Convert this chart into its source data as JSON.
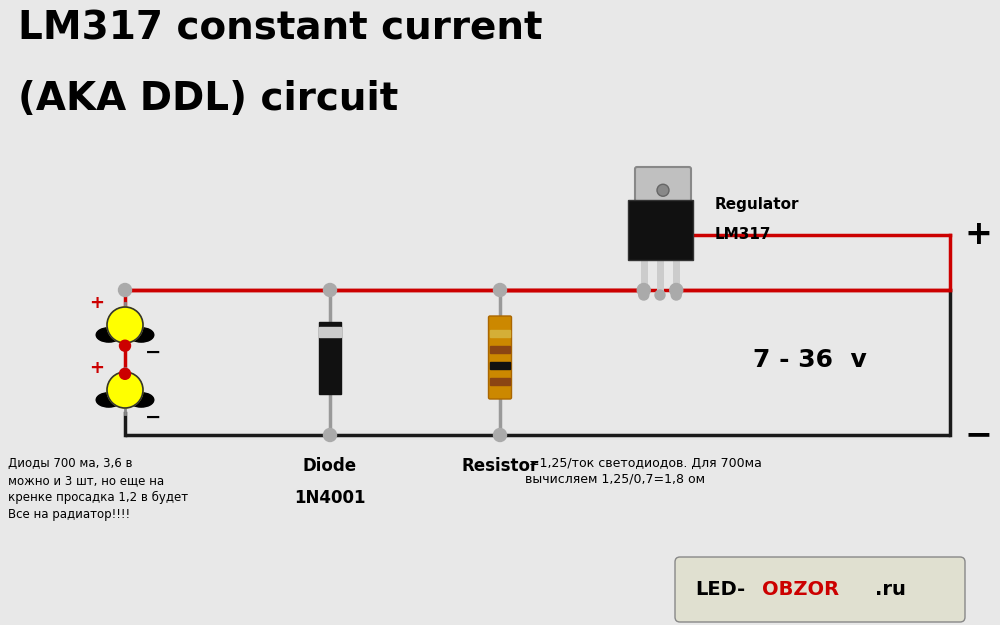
{
  "title_line1": "LM317 constant current",
  "title_line2": "(AKA DDL) circuit",
  "title_fontsize": 28,
  "title_fontweight": "bold",
  "bg_color": "#e8e8e8",
  "wire_red": "#cc0000",
  "wire_black": "#1a1a1a",
  "wire_gray": "#999999",
  "node_color": "#aaaaaa",
  "text_diode_label": "Diode\n1N4001",
  "text_resistor_label": "Resistor",
  "text_resistor_formula": " =1,25/ток светодиодов. Для 700ма\nвычисляем 1,25/0,7=1,8 ом",
  "text_regulator_line1": "Regulator",
  "text_regulator_line2": "LM317",
  "text_voltage": "7 - 36  v",
  "text_russian": "Диоды 700 ма, 3,6 в\nможно и 3 шт, но еще на\nкренке просадка 1,2 в будет\nВсе на радиатор!!!!",
  "plus_sign": "+",
  "minus_sign": "−",
  "led_obzor_box_color": "#e0e0d0"
}
